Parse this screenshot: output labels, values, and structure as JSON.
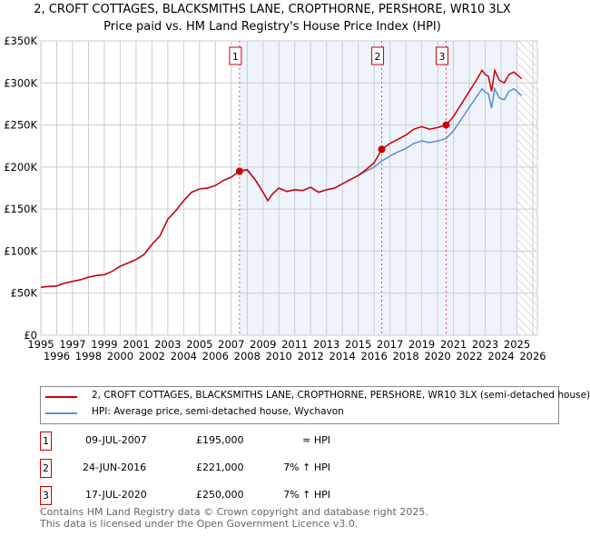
{
  "chart_data": {
    "type": "line",
    "title": "2, CROFT COTTAGES, BLACKSMITHS LANE, CROPTHORNE, PERSHORE, WR10 3LX",
    "subtitle": "Price paid vs. HM Land Registry's House Price Index (HPI)",
    "xlim": [
      1995,
      2026
    ],
    "ylim": [
      0,
      350000
    ],
    "x_ticks": [
      "1995",
      "1996",
      "1997",
      "1998",
      "1999",
      "2000",
      "2001",
      "2002",
      "2003",
      "2004",
      "2005",
      "2006",
      "2007",
      "2008",
      "2009",
      "2010",
      "2011",
      "2012",
      "2013",
      "2014",
      "2015",
      "2016",
      "2017",
      "2018",
      "2019",
      "2020",
      "2021",
      "2022",
      "2023",
      "2024",
      "2025",
      "2026"
    ],
    "y_ticks": [
      {
        "v": 0,
        "label": "£0"
      },
      {
        "v": 50000,
        "label": "£50K"
      },
      {
        "v": 100000,
        "label": "£100K"
      },
      {
        "v": 150000,
        "label": "£150K"
      },
      {
        "v": 200000,
        "label": "£200K"
      },
      {
        "v": 250000,
        "label": "£250K"
      },
      {
        "v": 300000,
        "label": "£300K"
      },
      {
        "v": 350000,
        "label": "£350K"
      }
    ],
    "grid": true,
    "series": [
      {
        "name": "2, CROFT COTTAGES, BLACKSMITHS LANE, CROPTHORNE, PERSHORE, WR10 3LX (semi-detached house)",
        "color": "#cc0000",
        "x": [
          1995,
          1995.5,
          1996,
          1996.5,
          1997,
          1997.5,
          1998,
          1998.5,
          1999,
          1999.5,
          2000,
          2000.5,
          2001,
          2001.5,
          2002,
          2002.5,
          2003,
          2003.5,
          2004,
          2004.5,
          2005,
          2005.5,
          2006,
          2006.5,
          2007,
          2007.52,
          2008,
          2008.5,
          2009,
          2009.3,
          2009.6,
          2010,
          2010.5,
          2011,
          2011.5,
          2012,
          2012.5,
          2013,
          2013.5,
          2014,
          2014.5,
          2015,
          2015.5,
          2016,
          2016.48,
          2017,
          2017.5,
          2018,
          2018.5,
          2019,
          2019.5,
          2020,
          2020.54,
          2021,
          2021.5,
          2022,
          2022.5,
          2022.8,
          2023,
          2023.2,
          2023.4,
          2023.6,
          2023.9,
          2024.2,
          2024.5,
          2024.8,
          2025,
          2025.3
        ],
        "y": [
          57000,
          58000,
          58500,
          62000,
          64000,
          66000,
          69000,
          71000,
          72000,
          76000,
          82000,
          86000,
          90000,
          96000,
          108000,
          118000,
          138000,
          148000,
          160000,
          170000,
          174000,
          175000,
          178000,
          184000,
          188000,
          195000,
          197000,
          185000,
          170000,
          160000,
          168000,
          175000,
          171000,
          173000,
          172000,
          176000,
          170000,
          173000,
          175000,
          180000,
          185000,
          190000,
          197000,
          205000,
          221000,
          228000,
          233000,
          238000,
          245000,
          248000,
          245000,
          247000,
          250000,
          260000,
          275000,
          290000,
          305000,
          315000,
          310000,
          308000,
          290000,
          315000,
          303000,
          300000,
          310000,
          313000,
          310000,
          305000
        ]
      },
      {
        "name": "HPI: Average price, semi-detached house, Wychavon",
        "color": "#5b8fd0",
        "x": [
          1995,
          1995.5,
          1996,
          1996.5,
          1997,
          1997.5,
          1998,
          1998.5,
          1999,
          1999.5,
          2000,
          2000.5,
          2001,
          2001.5,
          2002,
          2002.5,
          2003,
          2003.5,
          2004,
          2004.5,
          2005,
          2005.5,
          2006,
          2006.5,
          2007,
          2007.52,
          2008,
          2008.5,
          2009,
          2009.3,
          2009.6,
          2010,
          2010.5,
          2011,
          2011.5,
          2012,
          2012.5,
          2013,
          2013.5,
          2014,
          2014.5,
          2015,
          2015.5,
          2016,
          2016.48,
          2017,
          2017.5,
          2018,
          2018.5,
          2019,
          2019.5,
          2020,
          2020.54,
          2021,
          2021.5,
          2022,
          2022.5,
          2022.8,
          2023,
          2023.2,
          2023.4,
          2023.6,
          2023.9,
          2024.2,
          2024.5,
          2024.8,
          2025,
          2025.3
        ],
        "y": [
          57000,
          58000,
          58500,
          62000,
          64000,
          66000,
          69000,
          71000,
          72000,
          76000,
          82000,
          86000,
          90000,
          96000,
          108000,
          118000,
          138000,
          148000,
          160000,
          170000,
          174000,
          175000,
          178000,
          184000,
          188000,
          195000,
          196000,
          185000,
          170000,
          160000,
          168000,
          175000,
          171000,
          173000,
          172000,
          176000,
          170000,
          173000,
          175000,
          180000,
          185000,
          190000,
          195000,
          200000,
          207000,
          213000,
          218000,
          222000,
          228000,
          231000,
          229000,
          231000,
          234000,
          243000,
          257000,
          271000,
          285000,
          293000,
          289000,
          287000,
          270000,
          293000,
          282000,
          280000,
          290000,
          293000,
          290000,
          285000
        ]
      }
    ],
    "sales": [
      {
        "n": "1",
        "x": 2007.52,
        "y": 195000,
        "date": "09-JUL-2007",
        "price": "£195,000",
        "vs": "≈ HPI"
      },
      {
        "n": "2",
        "x": 2016.48,
        "y": 221000,
        "date": "24-JUN-2016",
        "price": "£221,000",
        "vs": "7% ↑ HPI"
      },
      {
        "n": "3",
        "x": 2020.54,
        "y": 250000,
        "date": "17-JUL-2020",
        "price": "£250,000",
        "vs": "7% ↑ HPI"
      }
    ],
    "shaded_from": 2007.52,
    "hatched_from": 2025.0
  },
  "legend": {
    "series1": "2, CROFT COTTAGES, BLACKSMITHS LANE, CROPTHORNE, PERSHORE, WR10 3LX (semi-detached house)",
    "series2": "HPI: Average price, semi-detached house, Wychavon"
  },
  "footer": {
    "line1": "Contains HM Land Registry data © Crown copyright and database right 2025.",
    "line2": "This data is licensed under the Open Government Licence v3.0."
  }
}
